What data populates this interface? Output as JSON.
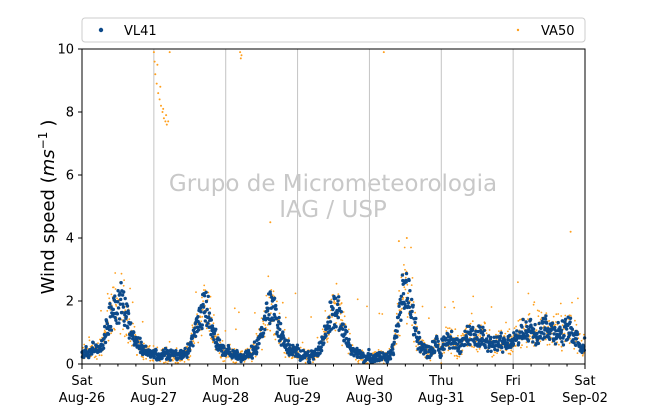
{
  "chart_data": {
    "type": "scatter",
    "title": "",
    "xlabel": "",
    "ylabel_main": "Wind speed (",
    "ylabel_unit_base": "ms",
    "ylabel_unit_exp": "−1",
    "ylabel_close": ")",
    "ylim": [
      0,
      10
    ],
    "yticks": [
      0,
      2,
      4,
      6,
      8,
      10
    ],
    "xlim": [
      "2023-08-26",
      "2023-09-02"
    ],
    "xticks": [
      {
        "day": "Sat",
        "date": "Aug-26"
      },
      {
        "day": "Sun",
        "date": "Aug-27"
      },
      {
        "day": "Mon",
        "date": "Aug-28"
      },
      {
        "day": "Tue",
        "date": "Aug-29"
      },
      {
        "day": "Wed",
        "date": "Aug-30"
      },
      {
        "day": "Thu",
        "date": "Aug-31"
      },
      {
        "day": "Fri",
        "date": "Sep-01"
      },
      {
        "day": "Sat",
        "date": "Sep-02"
      }
    ],
    "grid": "vertical lines at day boundaries",
    "legend_placement": "top, above plot",
    "watermark": [
      "Grupo de Micrometeorologia",
      "IAG / USP"
    ],
    "series": [
      {
        "name": "VL41",
        "color": "#0d4a8a",
        "marker": "filled circle",
        "daily_profile_hourly_m_s": [
          [
            0.3,
            0.4,
            0.3,
            0.4,
            0.5,
            0.4,
            0.5,
            0.7,
            1.0,
            1.4,
            1.7,
            1.9,
            1.9,
            2.0,
            1.8,
            1.6,
            1.2,
            0.9,
            0.7,
            0.6,
            0.5,
            0.4,
            0.4,
            0.3
          ],
          [
            0.3,
            0.3,
            0.2,
            0.3,
            0.3,
            0.3,
            0.3,
            0.3,
            0.3,
            0.3,
            0.3,
            0.4,
            0.5,
            0.8,
            1.1,
            1.4,
            1.6,
            1.8,
            1.7,
            1.4,
            1.0,
            0.7,
            0.5,
            0.4
          ],
          [
            0.4,
            0.4,
            0.3,
            0.3,
            0.3,
            0.2,
            0.2,
            0.3,
            0.3,
            0.4,
            0.5,
            0.7,
            1.1,
            1.4,
            1.7,
            1.8,
            1.7,
            1.4,
            1.1,
            0.8,
            0.6,
            0.5,
            0.4,
            0.4
          ],
          [
            0.3,
            0.3,
            0.3,
            0.3,
            0.2,
            0.3,
            0.3,
            0.4,
            0.6,
            0.9,
            1.2,
            1.5,
            1.7,
            1.7,
            1.5,
            1.2,
            0.9,
            0.7,
            0.5,
            0.4,
            0.3,
            0.3,
            0.2,
            0.2
          ],
          [
            0.2,
            0.2,
            0.2,
            0.2,
            0.2,
            0.2,
            0.2,
            0.3,
            0.5,
            1.0,
            1.6,
            2.1,
            2.3,
            2.2,
            1.8,
            1.3,
            0.9,
            0.6,
            0.5,
            0.4,
            0.4,
            0.5,
            0.6,
            0.6
          ],
          [
            0.6,
            0.7,
            0.8,
            0.8,
            0.7,
            0.6,
            0.5,
            0.6,
            0.8,
            0.9,
            0.9,
            0.8,
            0.8,
            0.9,
            0.9,
            0.8,
            0.7,
            0.6,
            0.6,
            0.7,
            0.7,
            0.6,
            0.6,
            0.7
          ],
          [
            0.7,
            0.8,
            0.9,
            1.0,
            1.0,
            1.1,
            1.1,
            1.0,
            1.0,
            1.1,
            1.2,
            1.2,
            1.1,
            1.1,
            1.0,
            1.0,
            1.0,
            1.0,
            1.1,
            1.1,
            1.0,
            0.9,
            0.7,
            0.5
          ]
        ]
      },
      {
        "name": "VA50",
        "color": "#ff9f1c",
        "marker": "small dot",
        "baseline_profile_hourly_m_s": [
          [
            0.3,
            0.4,
            0.3,
            0.4,
            0.5,
            0.4,
            0.5,
            0.7,
            1.0,
            1.4,
            1.7,
            1.9,
            1.9,
            2.0,
            1.8,
            1.6,
            1.2,
            0.9,
            0.7,
            0.6,
            0.5,
            0.4,
            0.4,
            0.3
          ],
          [
            0.3,
            0.3,
            0.2,
            0.3,
            0.3,
            0.3,
            0.3,
            0.3,
            0.3,
            0.3,
            0.3,
            0.4,
            0.5,
            0.8,
            1.1,
            1.4,
            1.6,
            1.8,
            1.7,
            1.4,
            1.0,
            0.7,
            0.5,
            0.4
          ],
          [
            0.4,
            0.4,
            0.3,
            0.3,
            0.3,
            0.2,
            0.2,
            0.3,
            0.3,
            0.4,
            0.5,
            0.7,
            1.1,
            1.4,
            1.7,
            1.8,
            1.7,
            1.4,
            1.1,
            0.8,
            0.6,
            0.5,
            0.4,
            0.4
          ],
          [
            0.3,
            0.3,
            0.3,
            0.3,
            0.2,
            0.3,
            0.3,
            0.4,
            0.6,
            0.9,
            1.2,
            1.5,
            1.7,
            1.7,
            1.5,
            1.2,
            0.9,
            0.7,
            0.5,
            0.4,
            0.3,
            0.3,
            0.2,
            0.2
          ],
          [
            0.2,
            0.2,
            0.2,
            0.2,
            0.2,
            0.2,
            0.2,
            0.3,
            0.5,
            1.0,
            1.6,
            2.1,
            2.3,
            2.2,
            1.8,
            1.3,
            0.9,
            0.6,
            0.5,
            0.4,
            0.4,
            0.5,
            0.6,
            0.6
          ],
          [
            0.6,
            0.7,
            0.8,
            0.8,
            0.7,
            0.6,
            0.5,
            0.6,
            0.8,
            0.9,
            0.9,
            0.8,
            0.8,
            0.9,
            0.9,
            0.8,
            0.7,
            0.6,
            0.6,
            0.7,
            0.7,
            0.6,
            0.6,
            0.7
          ],
          [
            0.7,
            0.8,
            0.9,
            1.0,
            1.0,
            1.1,
            1.1,
            1.0,
            1.0,
            1.1,
            1.2,
            1.2,
            1.1,
            1.1,
            1.0,
            1.0,
            1.0,
            1.0,
            1.1,
            1.1,
            1.0,
            0.9,
            0.7,
            0.5
          ]
        ],
        "high_points": [
          [
            1.0,
            9.9
          ],
          [
            1.01,
            9.6
          ],
          [
            1.02,
            9.2
          ],
          [
            1.04,
            8.9
          ],
          [
            1.06,
            8.6
          ],
          [
            1.08,
            8.4
          ],
          [
            1.1,
            8.2
          ],
          [
            1.12,
            8.0
          ],
          [
            1.14,
            7.8
          ],
          [
            1.16,
            7.7
          ],
          [
            1.18,
            7.6
          ],
          [
            1.2,
            7.7
          ],
          [
            1.22,
            9.9
          ],
          [
            1.05,
            9.5
          ],
          [
            1.09,
            8.8
          ],
          [
            1.13,
            8.1
          ],
          [
            1.17,
            7.9
          ],
          [
            2.2,
            9.9
          ],
          [
            2.21,
            9.7
          ],
          [
            2.22,
            9.8
          ],
          [
            4.2,
            9.9
          ],
          [
            2.62,
            4.5
          ],
          [
            4.41,
            3.9
          ],
          [
            4.52,
            4.0
          ],
          [
            6.8,
            4.2
          ]
        ]
      }
    ]
  }
}
